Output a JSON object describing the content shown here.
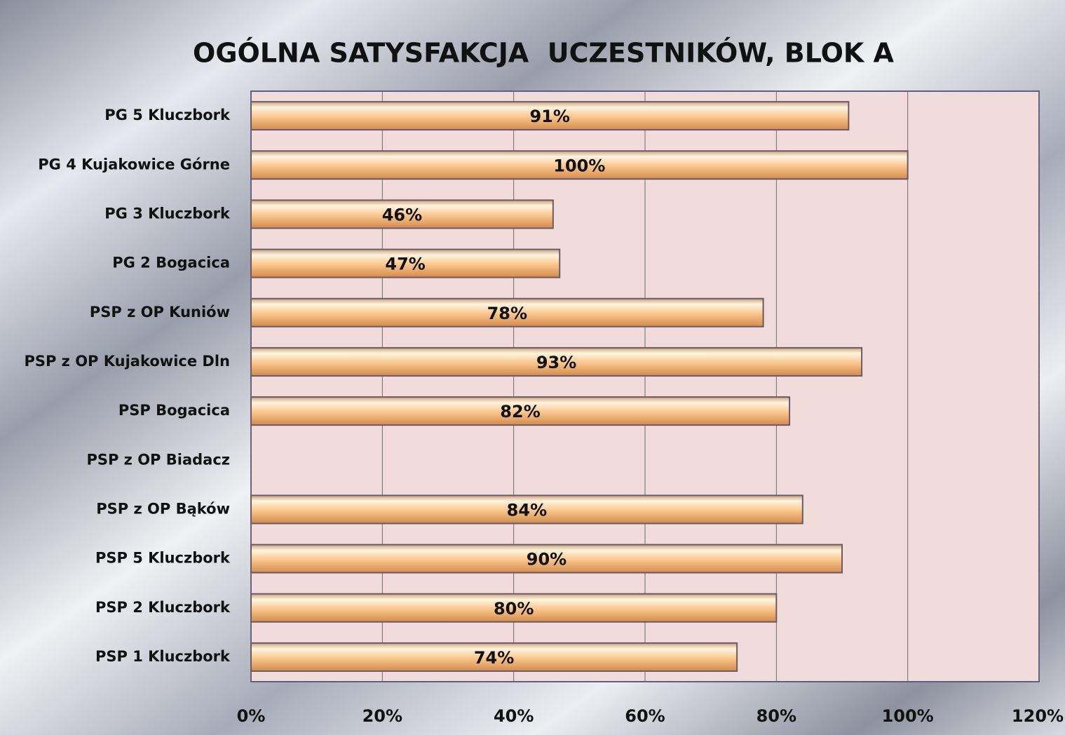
{
  "chart_data": {
    "type": "bar",
    "orientation": "horizontal",
    "title": "OGÓLNA SATYSFAKCJA  UCZESTNIKÓW, BLOK A",
    "categories": [
      "PG 5 Kluczbork",
      "PG 4 Kujakowice Górne",
      "PG 3 Kluczbork",
      "PG 2 Bogacica",
      "PSP z OP Kuniów",
      "PSP z OP Kujakowice Dln",
      "PSP Bogacica",
      "PSP z OP Biadacz",
      "PSP z OP Bąków",
      "PSP 5 Kluczbork",
      "PSP 2 Kluczbork",
      "PSP 1 Kluczbork"
    ],
    "values": [
      91,
      100,
      46,
      47,
      78,
      93,
      82,
      null,
      84,
      90,
      80,
      74
    ],
    "value_labels": [
      "91%",
      "100%",
      "46%",
      "47%",
      "78%",
      "93%",
      "82%",
      null,
      "84%",
      "90%",
      "80%",
      "74%"
    ],
    "color": "#f5b77c",
    "xlim": [
      0,
      120
    ],
    "xticks": [
      {
        "value": 0,
        "label": "0%"
      },
      {
        "value": 20,
        "label": "20%"
      },
      {
        "value": 40,
        "label": "40%"
      },
      {
        "value": 60,
        "label": "60%"
      },
      {
        "value": 80,
        "label": "80%"
      },
      {
        "value": 100,
        "label": "100%"
      },
      {
        "value": 120,
        "label": "120%"
      }
    ],
    "grid": true
  }
}
